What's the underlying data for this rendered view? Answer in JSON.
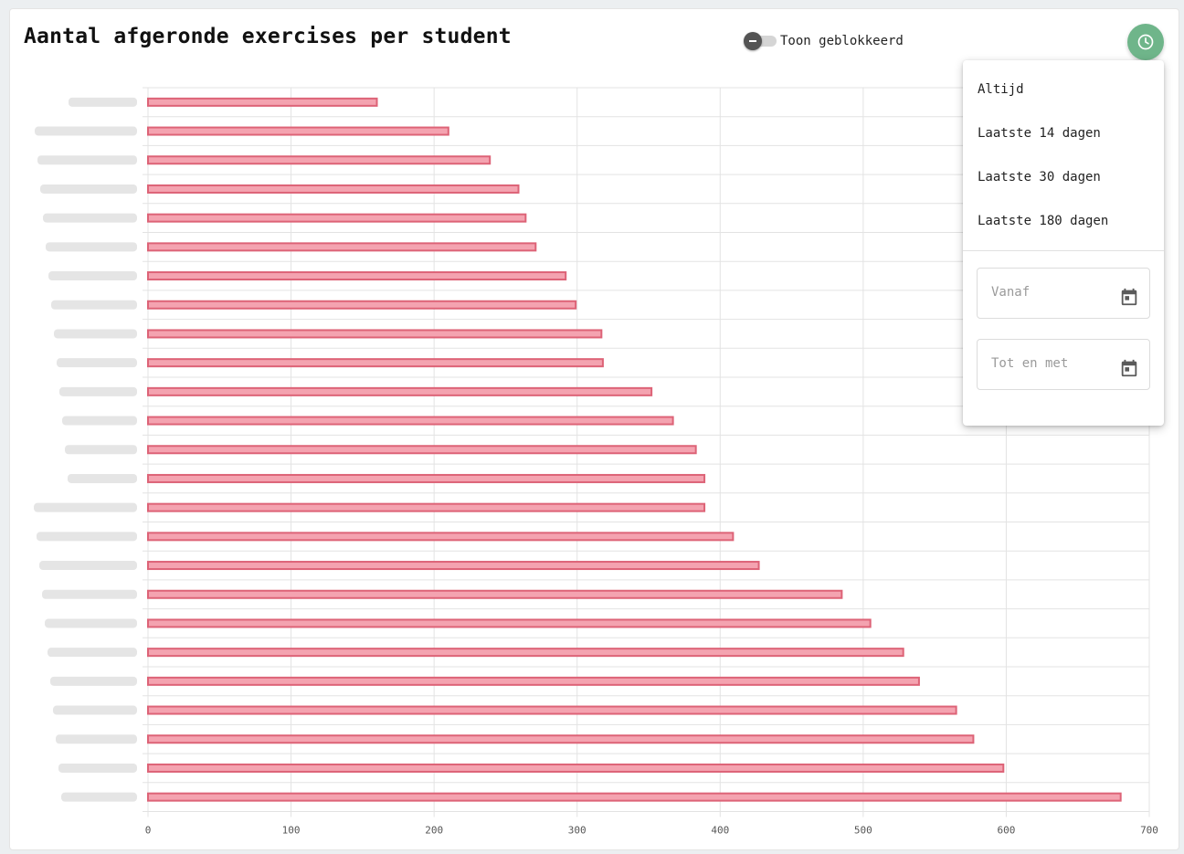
{
  "header": {
    "title": "Aantal afgeronde exercises per student",
    "toggle_label": "Toon geblokkeerd",
    "toggle_on": false,
    "history_icon": "clock-icon"
  },
  "colors": {
    "bar_fill": "#f4a3b0",
    "bar_stroke": "#dd6377",
    "accent": "#6fb58a"
  },
  "menu": {
    "items": [
      "Altijd",
      "Laatste 14 dagen",
      "Laatste 30 dagen",
      "Laatste 180 dagen"
    ],
    "from_placeholder": "Vanaf",
    "to_placeholder": "Tot en met",
    "calendar_icon": "calendar-icon"
  },
  "chart_data": {
    "type": "bar",
    "orientation": "horizontal",
    "category_labels_blurred": true,
    "values": [
      160,
      210,
      239,
      259,
      264,
      271,
      292,
      299,
      317,
      318,
      352,
      367,
      383,
      389,
      389,
      409,
      427,
      485,
      505,
      528,
      539,
      565,
      577,
      598,
      680
    ],
    "xlim": [
      0,
      700
    ],
    "xticks": [
      "0",
      "100",
      "200",
      "300",
      "400",
      "500",
      "600",
      "700"
    ],
    "grid": true
  }
}
